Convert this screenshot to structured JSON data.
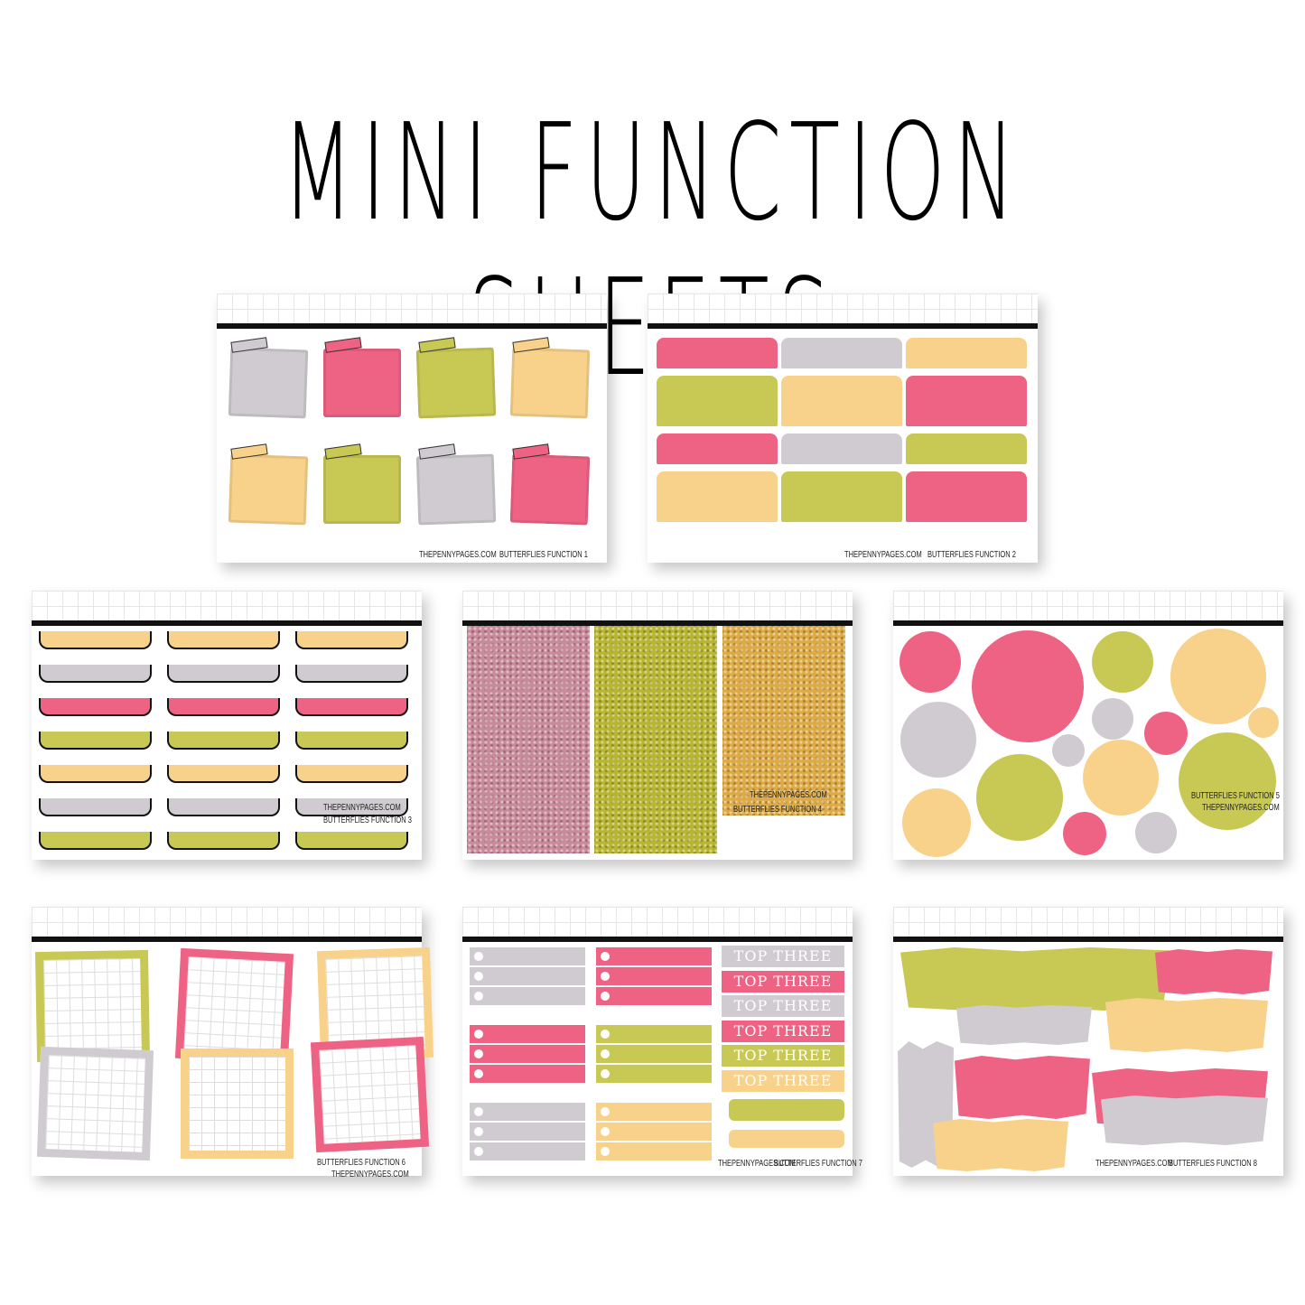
{
  "title": "MINI FUNCTION SHEETS",
  "colors": {
    "pink": "#ee6384",
    "gray": "#cfcbd0",
    "lime": "#c8c855",
    "peach": "#f8d28a",
    "glitter_pink": "#c98a9b",
    "glitter_lime": "#b8b531",
    "glitter_gold": "#deaa45"
  },
  "sheets": [
    {
      "site": "THEPENNYPAGES.COM",
      "name": "BUTTERFLIES FUNCTION 1"
    },
    {
      "site": "THEPENNYPAGES.COM",
      "name": "BUTTERFLIES FUNCTION 2"
    },
    {
      "site": "THEPENNYPAGES.COM",
      "name": "BUTTERFLIES FUNCTION 3"
    },
    {
      "site": "THEPENNYPAGES.COM",
      "name": "BUTTERFLIES FUNCTION 4"
    },
    {
      "site": "THEPENNYPAGES.COM",
      "name": "BUTTERFLIES FUNCTION 5"
    },
    {
      "site": "THEPENNYPAGES.COM",
      "name": "BUTTERFLIES FUNCTION 6"
    },
    {
      "site": "THEPENNYPAGES.COM",
      "name": "BUTTERFLIES FUNCTION 7"
    },
    {
      "site": "THEPENNYPAGES.COM",
      "name": "BUTTERFLIES FUNCTION 8"
    }
  ],
  "top_three": [
    "TOP THREE",
    "TOP THREE",
    "TOP THREE",
    "TOP THREE",
    "TOP THREE",
    "TOP THREE"
  ]
}
